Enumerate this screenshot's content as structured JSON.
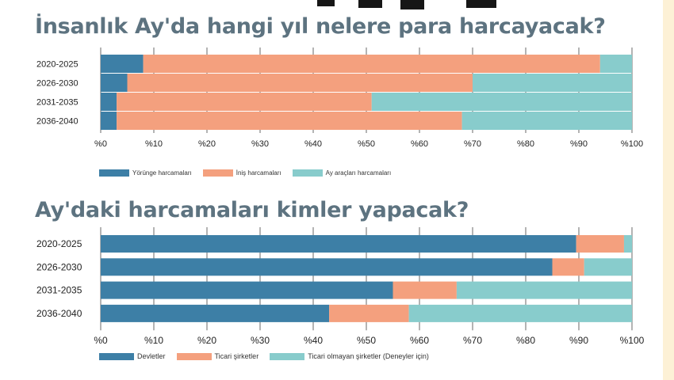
{
  "colors": {
    "blue": "#3d7fa6",
    "orange": "#f4a07e",
    "teal": "#88cccc",
    "title": "#5d7380",
    "grid": "#444444"
  },
  "chart_data": [
    {
      "type": "bar",
      "orientation": "horizontal",
      "stacked": true,
      "title": "İnsanlık Ay'da hangi yıl nelere para harcayacak?",
      "categories": [
        "2020-2025",
        "2026-2030",
        "2031-2035",
        "2036-2040"
      ],
      "series": [
        {
          "name": "Yörünge harcamaları",
          "color": "#3d7fa6",
          "values": [
            8,
            5,
            3,
            3
          ]
        },
        {
          "name": "İniş harcamaları",
          "color": "#f4a07e",
          "values": [
            86,
            65,
            48,
            65
          ]
        },
        {
          "name": "Ay araçları harcamaları",
          "color": "#88cccc",
          "values": [
            6,
            30,
            49,
            32
          ]
        }
      ],
      "xlim": [
        0,
        100
      ],
      "xticks": [
        "%0",
        "%10",
        "%20",
        "%30",
        "%40",
        "%50",
        "%60",
        "%70",
        "%80",
        "%90",
        "%100"
      ],
      "legend_position": "bottom"
    },
    {
      "type": "bar",
      "orientation": "horizontal",
      "stacked": true,
      "title": "Ay'daki harcamaları kimler yapacak?",
      "categories": [
        "2020-2025",
        "2026-2030",
        "2031-2035",
        "2036-2040"
      ],
      "series": [
        {
          "name": "Devletler",
          "color": "#3d7fa6",
          "values": [
            89.5,
            85,
            55,
            43
          ]
        },
        {
          "name": "Ticari şirketler",
          "color": "#f4a07e",
          "values": [
            9,
            6,
            12,
            15
          ]
        },
        {
          "name": "Ticari olmayan şirketler (Deneyler için)",
          "color": "#88cccc",
          "values": [
            1.5,
            9,
            33,
            42
          ]
        }
      ],
      "xlim": [
        0,
        100
      ],
      "xticks": [
        "%0",
        "%10",
        "%20",
        "%30",
        "%40",
        "%50",
        "%60",
        "%70",
        "%80",
        "%90",
        "%100"
      ],
      "legend_position": "bottom"
    }
  ]
}
